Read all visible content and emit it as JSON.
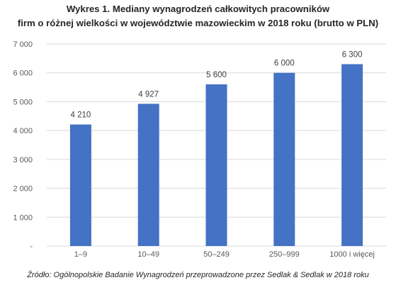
{
  "chart_data": {
    "type": "bar",
    "title": "Wykres 1. Mediany wynagrodzeń całkowitych pracowników",
    "subtitle": "firm o różnej wielkości w województwie mazowieckim w 2018 roku (brutto w PLN)",
    "categories": [
      "1–9",
      "10–49",
      "50–249",
      "250–999",
      "1000 i więcej"
    ],
    "values": [
      4210,
      4927,
      5600,
      6000,
      6300
    ],
    "value_labels": [
      "4 210",
      "4 927",
      "5 600",
      "6 000",
      "6 300"
    ],
    "yticks": [
      {
        "value": 0,
        "label": "-"
      },
      {
        "value": 1000,
        "label": "1 000"
      },
      {
        "value": 2000,
        "label": "2 000"
      },
      {
        "value": 3000,
        "label": "3 000"
      },
      {
        "value": 4000,
        "label": "4 000"
      },
      {
        "value": 5000,
        "label": "5 000"
      },
      {
        "value": 6000,
        "label": "6 000"
      },
      {
        "value": 7000,
        "label": "7 000"
      }
    ],
    "ylim": [
      0,
      7000
    ],
    "grid": true,
    "legend": "none",
    "bar_color": "#4472C4",
    "grid_color": "#D9D9D9"
  },
  "source": "Źródło: Ogólnopolskie Badanie Wynagrodzeń przeprowadzone przez Sedlak & Sedlak w 2018 roku"
}
